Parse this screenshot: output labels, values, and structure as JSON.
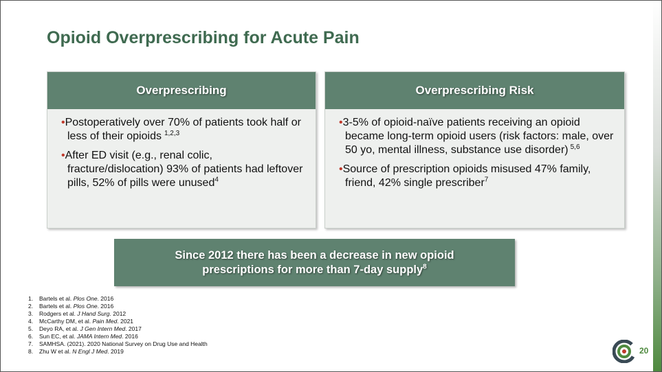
{
  "title": "Opioid Overprescribing for Acute Pain",
  "panels": [
    {
      "heading": "Overprescribing",
      "bullets": [
        {
          "text": "Postoperatively over 70% of patients took half or less of their opioids",
          "sup": "1,2,3"
        },
        {
          "text": "After ED visit (e.g., renal colic, fracture/dislocation) 93% of patients had leftover pills, 52% of pills were unused",
          "sup": "4"
        }
      ]
    },
    {
      "heading": "Overprescribing Risk",
      "bullets": [
        {
          "text": "3-5% of opioid-naïve patients receiving an opioid became long-term opioid users (risk factors: male, over 50 yo, mental illness, substance use disorder)",
          "sup": "5,6"
        },
        {
          "text": "Source of prescription opioids misused 47% family, friend, 42% single prescriber",
          "sup": "7"
        }
      ]
    }
  ],
  "callout": {
    "text": "Since 2012 there has been a decrease in new opioid prescriptions for more than 7-day supply",
    "sup": "8"
  },
  "references": [
    {
      "number": "1.",
      "before": "Bartels et al. ",
      "journal": "Plos One",
      "after": ". 2016"
    },
    {
      "number": "2.",
      "before": "Bartels et al. ",
      "journal": "Plos One",
      "after": ". 2016"
    },
    {
      "number": "3.",
      "before": "Rodgers et al. ",
      "journal": "J Hand Surg",
      "after": ". 2012"
    },
    {
      "number": "4.",
      "before": "McCarthy DM, et al. ",
      "journal": "Pain Med",
      "after": ". 2021"
    },
    {
      "number": "5.",
      "before": "Deyo RA, et al. ",
      "journal": "J Gen Intern Med",
      "after": ". 2017"
    },
    {
      "number": "6.",
      "before": "Sun EC, et al. ",
      "journal": "JAMA Intern Med",
      "after": ". 2016"
    },
    {
      "number": "7.",
      "before": "SAMHSA. (2021). 2020 National Survey on Drug Use and Health"
    },
    {
      "number": "8.",
      "before": "Zhu W et al. ",
      "journal": "N Engl J Med",
      "after": ". 2019"
    }
  ],
  "page_number": "20"
}
